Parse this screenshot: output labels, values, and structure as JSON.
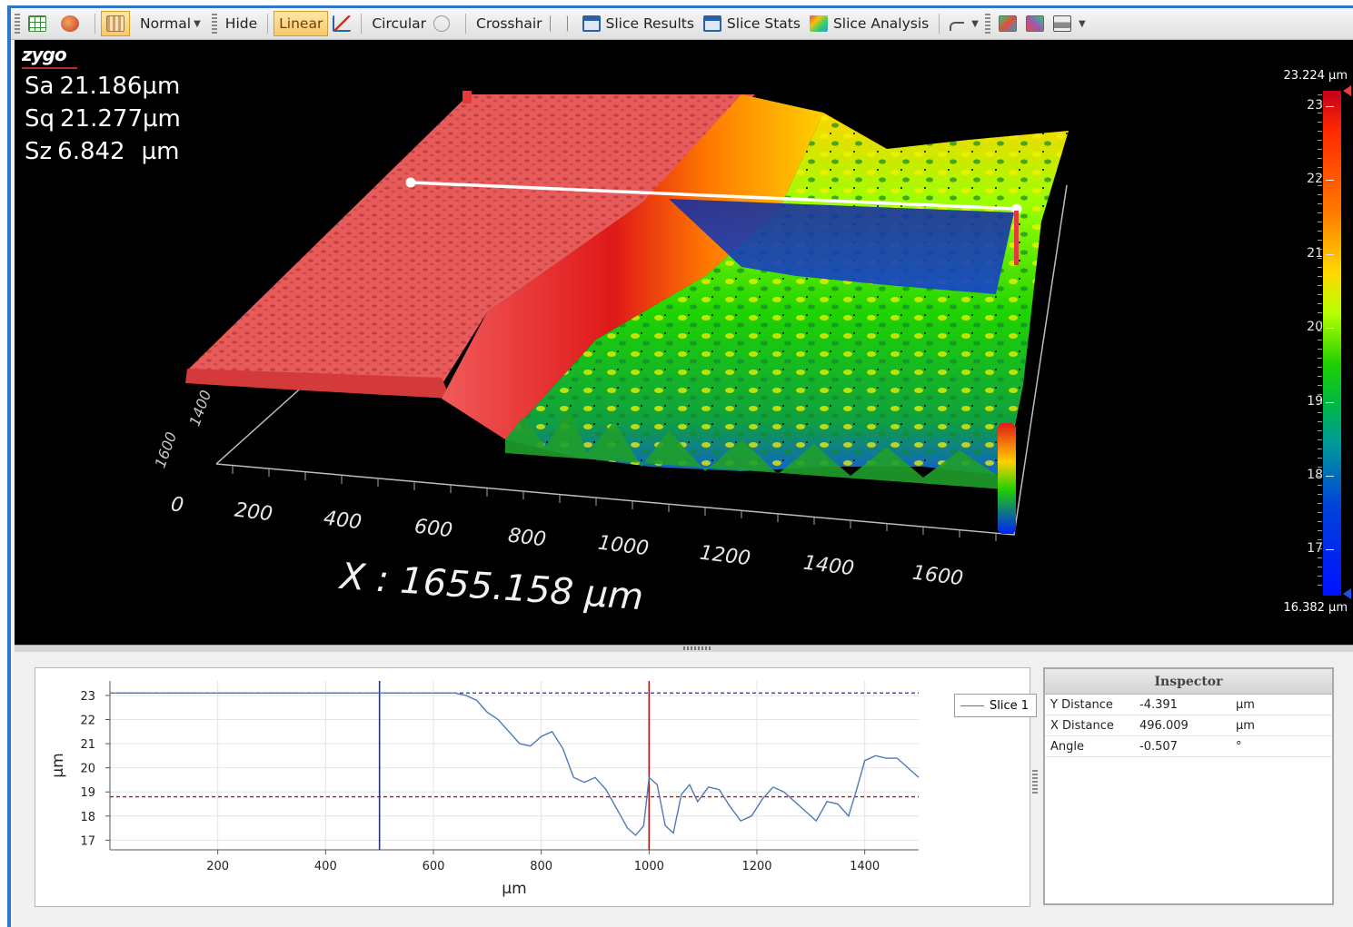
{
  "toolbar": {
    "items": [
      {
        "label": "Normal"
      },
      {
        "label": "Hide"
      },
      {
        "label": "Linear"
      },
      {
        "label": "Circular"
      },
      {
        "label": "Crosshair"
      },
      {
        "label": "Slice Results"
      },
      {
        "label": "Slice Stats"
      },
      {
        "label": "Slice Analysis"
      }
    ],
    "active_item": "Linear"
  },
  "view3d": {
    "logo": "zygo",
    "stats": [
      {
        "name": "Sa",
        "value": "21.186",
        "unit": "µm"
      },
      {
        "name": "Sq",
        "value": "21.277",
        "unit": "µm"
      },
      {
        "name": "Sz",
        "value": "6.842",
        "unit": "µm"
      }
    ],
    "x_axis_label": "X : 1655.158 µm",
    "x_ticks": [
      "0",
      "200",
      "400",
      "600",
      "800",
      "1000",
      "1200",
      "1400",
      "1600"
    ],
    "y_ticks": [
      "1400",
      "1600"
    ],
    "color_bar": {
      "max_label": "23.224 µm",
      "min_label": "16.382 µm",
      "ticks": [
        "23",
        "22",
        "21",
        "20",
        "19",
        "18",
        "17"
      ]
    }
  },
  "profile": {
    "legend": "Slice 1",
    "xlabel": "µm",
    "ylabel": "µm"
  },
  "chart_data": {
    "type": "line",
    "xlabel": "µm",
    "ylabel": "µm",
    "xlim": [
      0,
      1500
    ],
    "ylim": [
      16.6,
      23.6
    ],
    "x_ticks": [
      200,
      400,
      600,
      800,
      1000,
      1200,
      1400
    ],
    "y_ticks": [
      17,
      18,
      19,
      20,
      21,
      22,
      23
    ],
    "series": [
      {
        "name": "Slice 1",
        "x": [
          0,
          50,
          100,
          150,
          200,
          250,
          300,
          350,
          400,
          450,
          500,
          550,
          600,
          640,
          660,
          680,
          700,
          720,
          740,
          760,
          780,
          800,
          820,
          840,
          860,
          880,
          900,
          920,
          940,
          960,
          975,
          990,
          1000,
          1015,
          1030,
          1045,
          1060,
          1075,
          1090,
          1110,
          1130,
          1150,
          1170,
          1190,
          1210,
          1230,
          1250,
          1270,
          1290,
          1310,
          1330,
          1350,
          1370,
          1385,
          1400,
          1420,
          1440,
          1460,
          1480,
          1500
        ],
        "y": [
          23.1,
          23.1,
          23.1,
          23.1,
          23.1,
          23.1,
          23.1,
          23.1,
          23.1,
          23.1,
          23.1,
          23.1,
          23.1,
          23.1,
          23.0,
          22.8,
          22.3,
          22.0,
          21.5,
          21.0,
          20.9,
          21.3,
          21.5,
          20.8,
          19.6,
          19.4,
          19.6,
          19.1,
          18.3,
          17.5,
          17.2,
          17.6,
          19.6,
          19.3,
          17.6,
          17.3,
          18.9,
          19.3,
          18.6,
          19.2,
          19.1,
          18.4,
          17.8,
          18.0,
          18.7,
          19.2,
          19.0,
          18.6,
          18.2,
          17.8,
          18.6,
          18.5,
          18.0,
          19.1,
          20.3,
          20.5,
          20.4,
          20.4,
          20.0,
          19.6
        ]
      }
    ],
    "reference_lines": [
      {
        "orientation": "horizontal",
        "value": 23.1,
        "color": "#1a2fc4"
      },
      {
        "orientation": "horizontal",
        "value": 18.8,
        "color": "#b0141c"
      },
      {
        "orientation": "vertical",
        "value": 500,
        "color": "#1a2fc4"
      },
      {
        "orientation": "vertical",
        "value": 1000,
        "color": "#b0141c"
      }
    ],
    "line_color": "#4d7ab8"
  },
  "inspector": {
    "title": "Inspector",
    "rows": [
      {
        "name": "Y Distance",
        "value": "-4.391",
        "unit": "µm"
      },
      {
        "name": "X Distance",
        "value": "496.009",
        "unit": "µm"
      },
      {
        "name": "Angle",
        "value": "-0.507",
        "unit": "°"
      }
    ]
  }
}
